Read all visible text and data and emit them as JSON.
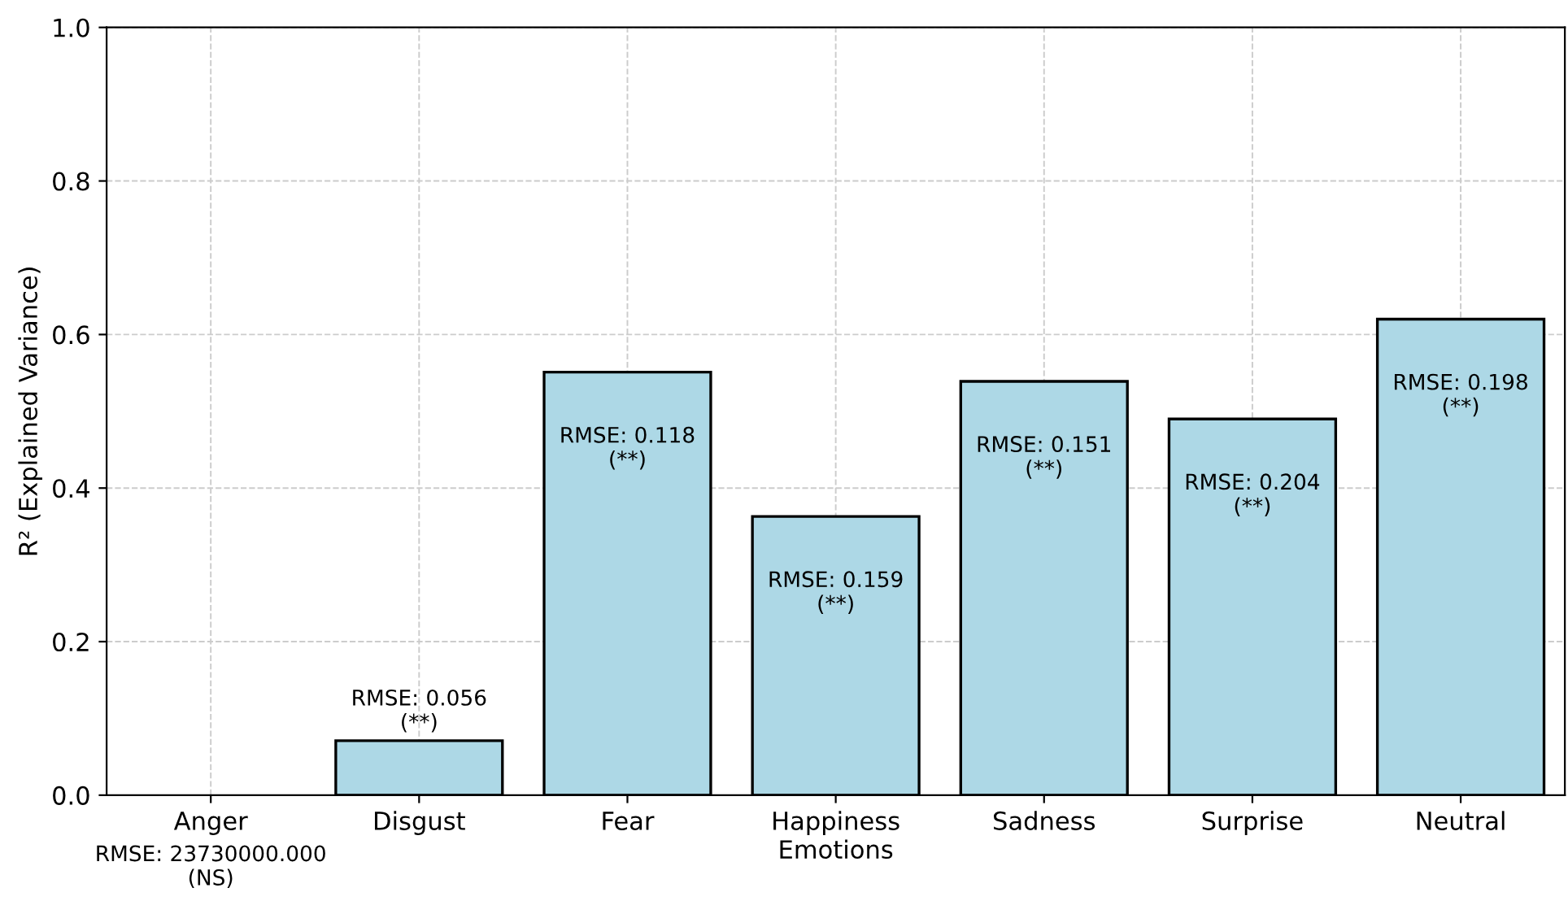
{
  "chart_data": {
    "type": "bar",
    "xlabel": "Emotions",
    "ylabel": "R² (Explained Variance)",
    "categories": [
      "Anger",
      "Disgust",
      "Fear",
      "Happiness",
      "Sadness",
      "Surprise",
      "Neutral"
    ],
    "values": [
      null,
      0.071,
      0.551,
      0.363,
      0.539,
      0.49,
      0.62
    ],
    "annotations": [
      "RMSE: 23730000.000\n(NS)",
      {
        "text": "RMSE: 0.056\n(**)",
        "x": "Disgust",
        "y": 0.071
      },
      {
        "text": "RMSE: 0.118\n(**)",
        "x": "Fear",
        "y": 0.551
      },
      {
        "text": "RMSE: 0.159\n(**)",
        "x": "Happiness",
        "y": 0.363
      },
      {
        "text": "RMSE: 0.151\n(**)",
        "x": "Sadness",
        "y": 0.539
      },
      {
        "text": "RMSE: 0.204\n(**)",
        "x": "Surprise",
        "y": 0.49
      },
      {
        "text": "RMSE: 0.198\n(**)",
        "x": "Neutral",
        "y": 0.62
      }
    ],
    "color": "#add8e6",
    "ylim": [
      0,
      1
    ],
    "yticks": [
      {
        "value": 0,
        "label": "0.0"
      },
      0.2,
      0.4,
      0.6,
      0.8,
      {
        "value": 1,
        "label": "1.0"
      }
    ],
    "grid": true
  }
}
